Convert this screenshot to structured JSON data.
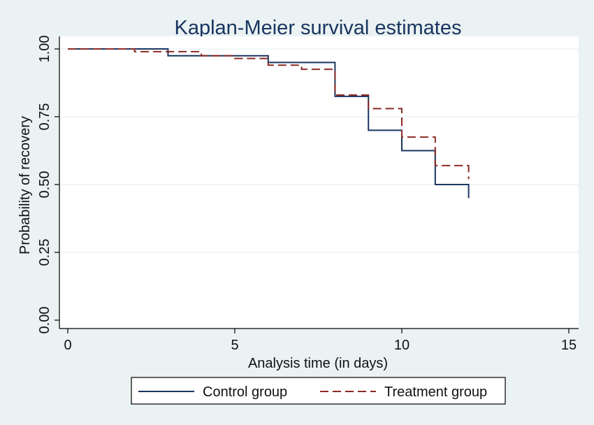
{
  "chart_data": {
    "type": "line",
    "title": "Kaplan-Meier survival estimates",
    "xlabel": "Analysis time (in days)",
    "ylabel": "Probability of recovery",
    "xlim": [
      0,
      15
    ],
    "ylim": [
      0,
      1
    ],
    "xticks": [
      "0",
      "5",
      "10",
      "15"
    ],
    "yticks": [
      "0.00",
      "0.25",
      "0.50",
      "0.75",
      "1.00"
    ],
    "grid": true,
    "legend_position": "bottom",
    "series": [
      {
        "name": "Control group",
        "color": "#1a3560",
        "style": "solid",
        "steps": [
          [
            0,
            1.0
          ],
          [
            3,
            0.975
          ],
          [
            6,
            0.95
          ],
          [
            8,
            0.825
          ],
          [
            9,
            0.7
          ],
          [
            10,
            0.625
          ],
          [
            11,
            0.5
          ],
          [
            12,
            0.45
          ]
        ]
      },
      {
        "name": "Treatment group",
        "color": "#8b2a24",
        "style": "dashed",
        "steps": [
          [
            0,
            1.0
          ],
          [
            2,
            0.99
          ],
          [
            4,
            0.975
          ],
          [
            5,
            0.965
          ],
          [
            6,
            0.94
          ],
          [
            7,
            0.925
          ],
          [
            8,
            0.83
          ],
          [
            9,
            0.78
          ],
          [
            10,
            0.675
          ],
          [
            11,
            0.57
          ],
          [
            12,
            0.52
          ]
        ]
      }
    ]
  }
}
